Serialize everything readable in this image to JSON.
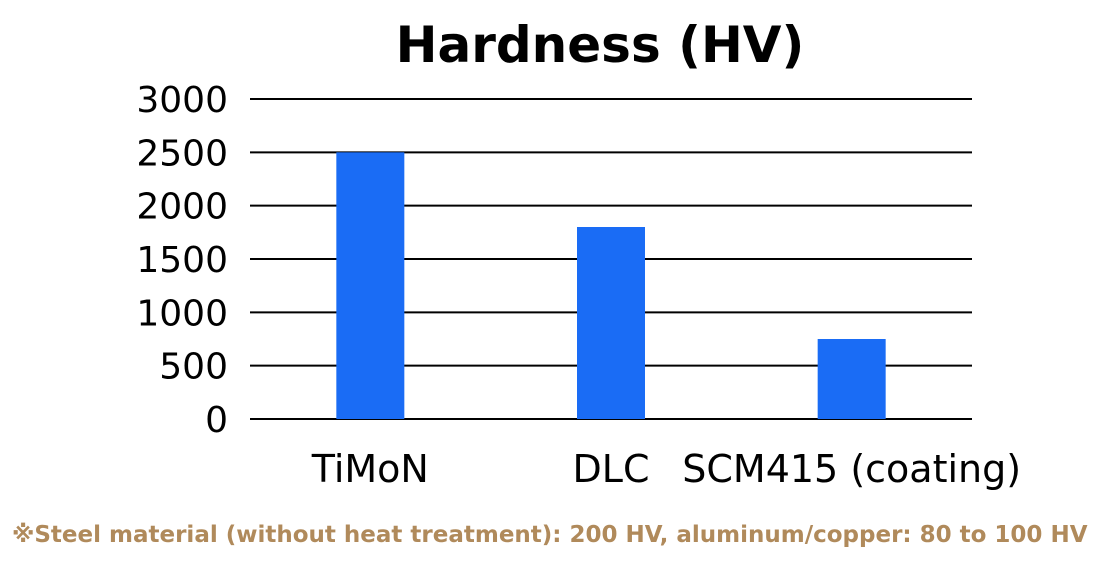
{
  "chart_data": {
    "type": "bar",
    "title": "Hardness (HV)",
    "categories": [
      "TiMoN",
      "DLC",
      "SCM415 (coating)"
    ],
    "series": [
      {
        "values": [
          2500,
          1800,
          750
        ]
      }
    ],
    "yticks": [
      "0",
      "500",
      "1000",
      "1500",
      "2000",
      "2500",
      "3000"
    ],
    "ylim": [
      0,
      3000
    ],
    "grid": true,
    "bar_color": "#1a6cf5"
  },
  "footnote": "※Steel material (without heat treatment): 200 HV, aluminum/copper: 80 to 100 HV"
}
